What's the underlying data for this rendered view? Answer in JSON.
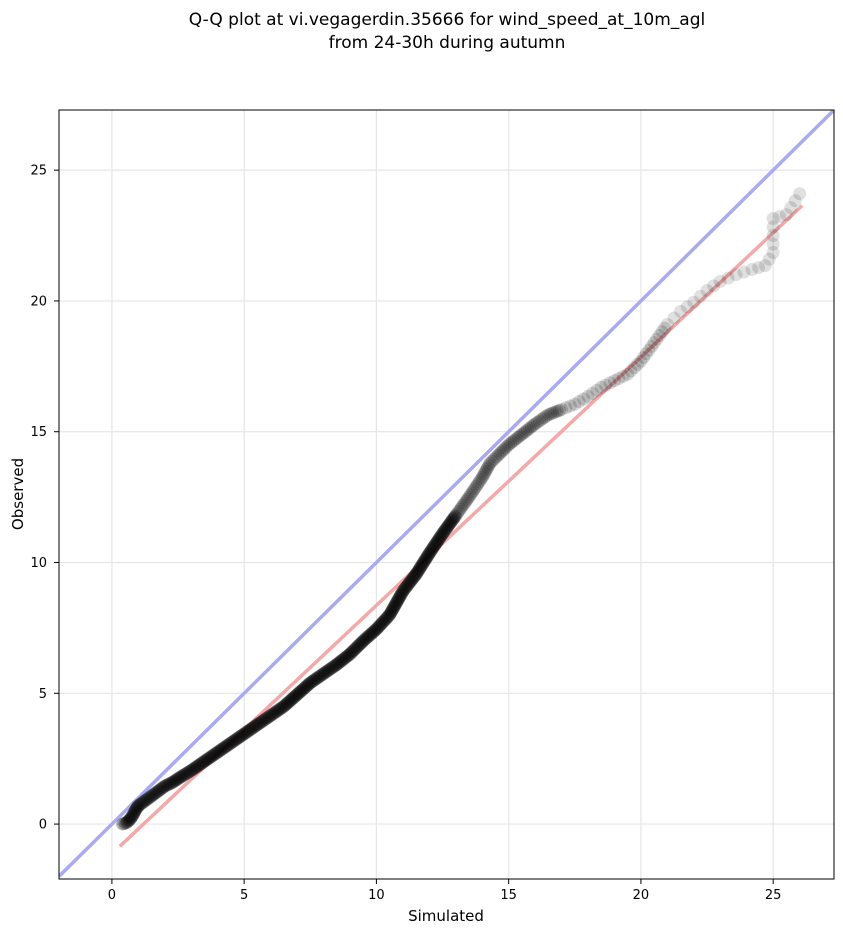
{
  "chart_data": {
    "type": "scatter",
    "title": [
      "Q-Q plot at vi.vegagerdin.35666 for wind_speed_at_10m_agl",
      "from 24-30h during autumn"
    ],
    "xlabel": "Simulated",
    "ylabel": "Observed",
    "xlim": [
      -2.0,
      27.3
    ],
    "ylim": [
      -2.1,
      27.3
    ],
    "xticks": [
      0,
      5,
      10,
      15,
      20,
      25
    ],
    "yticks": [
      0,
      5,
      10,
      15,
      20,
      25
    ],
    "grid": true,
    "reference_lines": [
      {
        "kind": "identity",
        "color": "#a9abf0",
        "from": [
          -2.0,
          -2.0
        ],
        "to": [
          27.3,
          27.3
        ]
      },
      {
        "kind": "fit",
        "color": "#f4a9a9",
        "from": [
          0.3,
          -0.85
        ],
        "to": [
          26.1,
          23.65
        ]
      }
    ],
    "point_color": "#000000",
    "quantiles": [
      [
        0.4,
        0.0
      ],
      [
        0.55,
        0.05
      ],
      [
        0.7,
        0.2
      ],
      [
        0.8,
        0.35
      ],
      [
        0.9,
        0.55
      ],
      [
        1.0,
        0.7
      ],
      [
        1.2,
        0.85
      ],
      [
        1.4,
        1.0
      ],
      [
        1.6,
        1.15
      ],
      [
        1.8,
        1.3
      ],
      [
        2.0,
        1.45
      ],
      [
        2.3,
        1.6
      ],
      [
        2.6,
        1.8
      ],
      [
        3.0,
        2.05
      ],
      [
        3.5,
        2.4
      ],
      [
        4.0,
        2.75
      ],
      [
        4.5,
        3.1
      ],
      [
        5.0,
        3.45
      ],
      [
        5.5,
        3.8
      ],
      [
        6.0,
        4.15
      ],
      [
        6.5,
        4.5
      ],
      [
        7.0,
        4.95
      ],
      [
        7.5,
        5.4
      ],
      [
        8.0,
        5.75
      ],
      [
        8.5,
        6.1
      ],
      [
        9.0,
        6.5
      ],
      [
        9.5,
        7.0
      ],
      [
        10.0,
        7.45
      ],
      [
        10.5,
        8.0
      ],
      [
        11.0,
        8.9
      ],
      [
        11.5,
        9.55
      ],
      [
        12.0,
        10.35
      ],
      [
        12.5,
        11.1
      ],
      [
        13.0,
        11.8
      ],
      [
        13.5,
        12.5
      ],
      [
        14.0,
        13.25
      ],
      [
        14.3,
        13.8
      ],
      [
        14.6,
        14.1
      ],
      [
        15.0,
        14.5
      ],
      [
        15.5,
        14.9
      ],
      [
        16.0,
        15.3
      ],
      [
        16.5,
        15.65
      ],
      [
        17.0,
        15.85
      ],
      [
        17.5,
        16.05
      ],
      [
        18.0,
        16.35
      ],
      [
        18.5,
        16.7
      ],
      [
        19.0,
        16.95
      ],
      [
        19.5,
        17.2
      ],
      [
        20.0,
        17.7
      ],
      [
        20.5,
        18.4
      ],
      [
        21.0,
        19.1
      ],
      [
        21.5,
        19.6
      ],
      [
        22.0,
        19.95
      ],
      [
        22.5,
        20.4
      ],
      [
        23.0,
        20.75
      ],
      [
        23.6,
        21.0
      ],
      [
        24.2,
        21.2
      ],
      [
        24.7,
        21.35
      ],
      [
        25.0,
        21.85
      ],
      [
        25.0,
        23.15
      ],
      [
        25.5,
        23.3
      ],
      [
        26.0,
        24.1
      ]
    ]
  }
}
